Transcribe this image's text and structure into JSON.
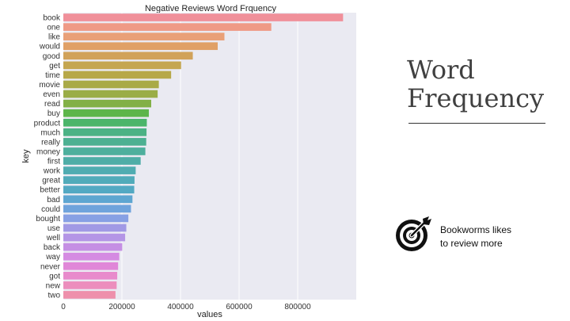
{
  "chart_data": {
    "type": "bar",
    "orientation": "horizontal",
    "title": "Negative Reviews Word Frquency",
    "xlabel": "values",
    "ylabel": "key",
    "xlim": [
      0,
      1000000
    ],
    "xticks": [
      0,
      200000,
      400000,
      600000,
      800000
    ],
    "xtick_labels": [
      "0",
      "200000",
      "400000",
      "600000",
      "800000"
    ],
    "grid": true,
    "categories": [
      "book",
      "one",
      "like",
      "would",
      "good",
      "get",
      "time",
      "movie",
      "even",
      "read",
      "buy",
      "product",
      "much",
      "really",
      "money",
      "first",
      "work",
      "great",
      "better",
      "bad",
      "could",
      "bought",
      "use",
      "well",
      "back",
      "way",
      "never",
      "got",
      "new",
      "two"
    ],
    "values": [
      955000,
      710000,
      550000,
      527000,
      442000,
      402000,
      368000,
      326000,
      322000,
      300000,
      292000,
      285000,
      284000,
      283000,
      280000,
      264000,
      247000,
      243000,
      242000,
      236000,
      231000,
      222000,
      215000,
      211000,
      201000,
      191000,
      187000,
      184000,
      182000,
      178000
    ],
    "colors": [
      "#f0909a",
      "#ef9a86",
      "#e9a078",
      "#e0a066",
      "#d1a259",
      "#c5a650",
      "#b7a848",
      "#a9aa47",
      "#9aad46",
      "#82b046",
      "#5db54a",
      "#4bb56a",
      "#4cb285",
      "#4db092",
      "#4eaf9d",
      "#4fada7",
      "#50acb1",
      "#51abba",
      "#53a9c3",
      "#5ea6d1",
      "#6fa3dc",
      "#87a0e4",
      "#a199e5",
      "#b495e6",
      "#c58fe4",
      "#d58be2",
      "#e087d8",
      "#e88bcc",
      "#ec8ebd",
      "#ee90ac"
    ],
    "bg_color": "#eaeaf2"
  },
  "side": {
    "title_line1": "Word",
    "title_line2": "Frequency",
    "note_line1": "Bookworms likes",
    "note_line2": "to review more",
    "icon": "target-icon"
  }
}
